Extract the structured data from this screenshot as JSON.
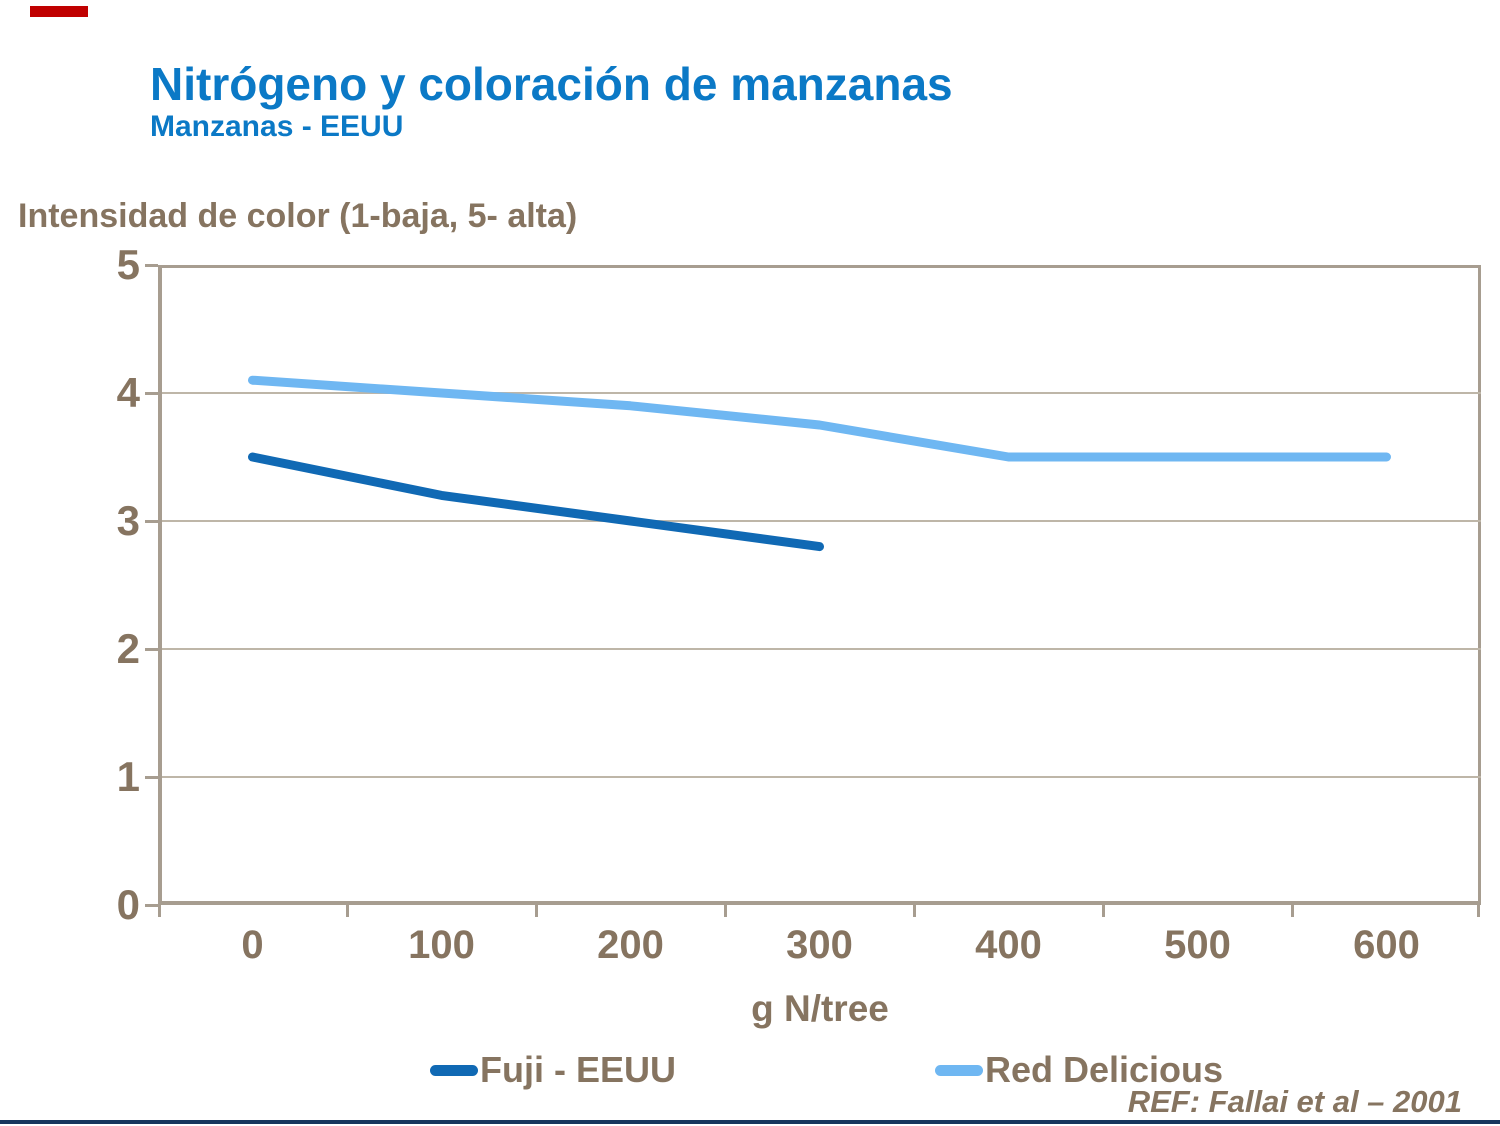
{
  "header": {
    "title": "Nitrógeno y coloración de manzanas",
    "subtitle": "Manzanas - EEUU"
  },
  "chart_data": {
    "type": "line",
    "title": "Intensidad de color (1-baja, 5- alta)",
    "xlabel": "g N/tree",
    "categories": [
      "0",
      "100",
      "200",
      "300",
      "400",
      "500",
      "600"
    ],
    "series": [
      {
        "name": "Fuji - EEUU",
        "color": "#1069B4",
        "values": [
          3.5,
          3.2,
          3.0,
          2.8,
          null,
          null,
          null
        ]
      },
      {
        "name": "Red Delicious",
        "color": "#6FB7F2",
        "values": [
          4.1,
          4.0,
          3.9,
          3.75,
          3.5,
          3.5,
          3.5
        ]
      }
    ],
    "ylim": [
      0,
      5
    ],
    "yticks": [
      0,
      1,
      2,
      3,
      4,
      5
    ],
    "grid": true,
    "legend_position": "bottom",
    "line_width": 9
  },
  "footer": {
    "ref": "REF: Fallai et al – 2001"
  },
  "colors": {
    "title_blue": "#0B79C6",
    "text_brown": "#867460",
    "axis": "#A79D90",
    "gridline": "#BEB6A8",
    "accent_red": "#C00000",
    "bottom_bar": "#17365D"
  }
}
